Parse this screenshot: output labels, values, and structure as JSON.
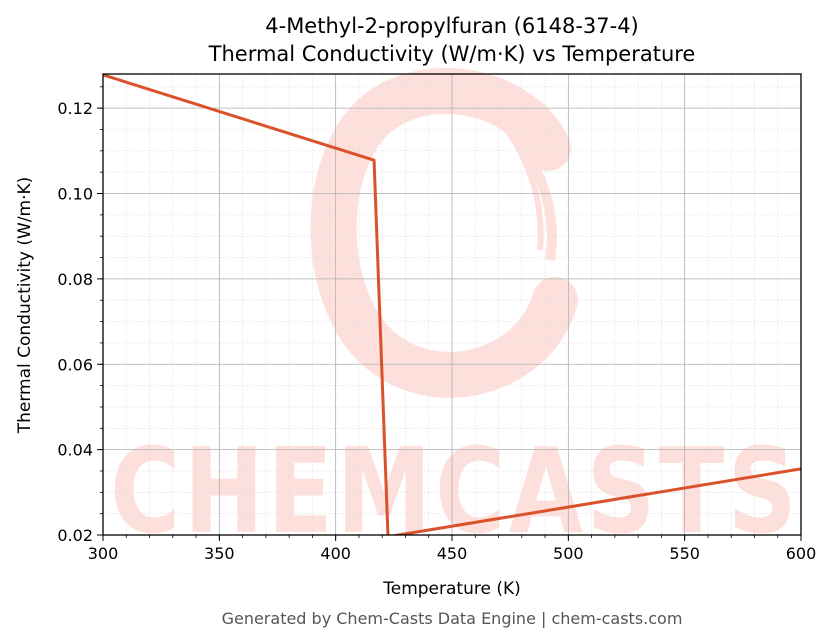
{
  "chart_data": {
    "type": "line",
    "title": "4-Methyl-2-propylfuran (6148-37-4)",
    "subtitle": "Thermal Conductivity (W/m·K) vs Temperature",
    "xlabel": "Temperature (K)",
    "ylabel": "Thermal Conductivity (W/m·K)",
    "xlim": [
      300,
      600
    ],
    "ylim": [
      0.02,
      0.128
    ],
    "xticks": [
      300,
      350,
      400,
      450,
      500,
      550,
      600
    ],
    "xtick_labels": [
      "300",
      "350",
      "400",
      "450",
      "500",
      "550",
      "600"
    ],
    "yticks": [
      0.02,
      0.04,
      0.06,
      0.08,
      0.1,
      0.12
    ],
    "ytick_labels": [
      "0.02",
      "0.04",
      "0.06",
      "0.08",
      "0.10",
      "0.12"
    ],
    "grid": true,
    "series": [
      {
        "x": [
          300,
          416.5,
          422.5,
          600
        ],
        "y": [
          0.1278,
          0.1078,
          0.0196,
          0.0355
        ],
        "color": "#d9522b"
      }
    ]
  },
  "watermark": {
    "text": "CHEMCASTS",
    "color": "#fde0dc"
  },
  "footer": "Generated by Chem-Casts Data Engine | chem-casts.com"
}
